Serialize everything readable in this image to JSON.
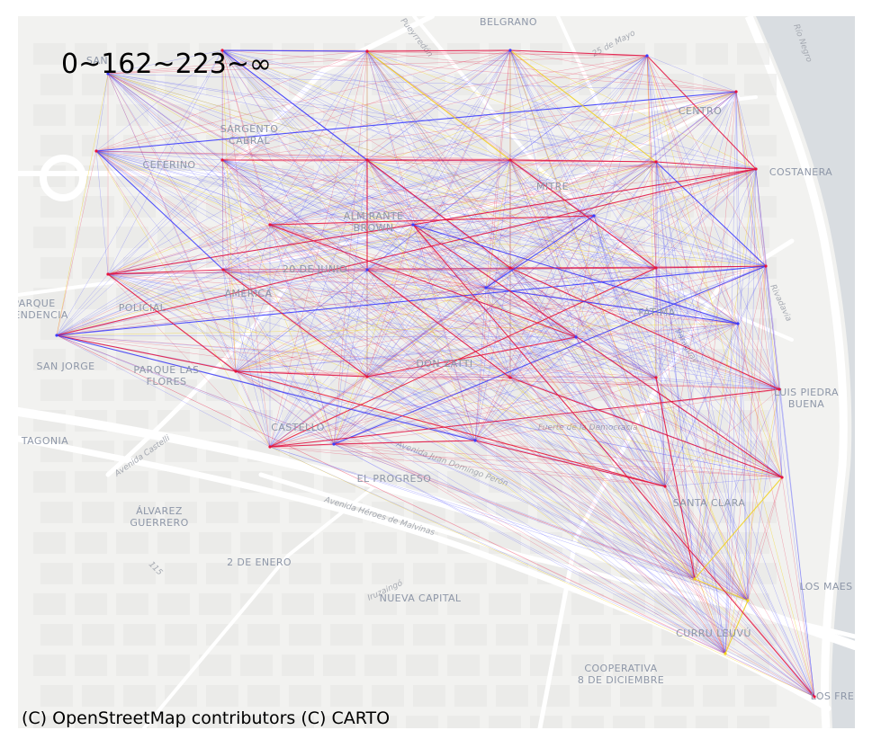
{
  "legend_text": "0~162~223~∞",
  "attribution": "(C) OpenStreetMap contributors (C) CARTO",
  "colors": {
    "background": "#f2f2f0",
    "river": "#d4d8dc",
    "road": "#ffffff",
    "block": "#e6e6e4",
    "label": "#8e97a8"
  },
  "edge_colors": {
    "blue": "#3b3bff",
    "red": "#e8123c",
    "yellow": "#f4d31a"
  },
  "places": [
    {
      "lines": [
        "BELGRANO"
      ]
    },
    {
      "lines": [
        "SARGENTO",
        "CABRAL"
      ]
    },
    {
      "lines": [
        "CENTRO"
      ]
    },
    {
      "lines": [
        "CEFERINO"
      ]
    },
    {
      "lines": [
        "COSTANERA"
      ]
    },
    {
      "lines": [
        "MITRE"
      ]
    },
    {
      "lines": [
        "ALMIRANTE",
        "BROWN"
      ]
    },
    {
      "lines": [
        "20 DE JUNIO"
      ]
    },
    {
      "lines": [
        "AMÉRICA"
      ]
    },
    {
      "lines": [
        "POLICIAL"
      ]
    },
    {
      "lines": [
        "PARQUE",
        "PENDENCIA"
      ]
    },
    {
      "lines": [
        "FÁTIMA"
      ]
    },
    {
      "lines": [
        "SAN JORGE"
      ]
    },
    {
      "lines": [
        "PARQUE LAS",
        "FLORES"
      ]
    },
    {
      "lines": [
        "DON ZATTI"
      ]
    },
    {
      "lines": [
        "LUIS PIEDRA",
        "BUENA"
      ]
    },
    {
      "lines": [
        "CASTELLO"
      ]
    },
    {
      "lines": [
        "TAGONIA"
      ]
    },
    {
      "lines": [
        "EL PROGRESO"
      ]
    },
    {
      "lines": [
        "SANTA CLARA"
      ]
    },
    {
      "lines": [
        "ÁLVAREZ",
        "GUERRERO"
      ]
    },
    {
      "lines": [
        "2 DE ENERO"
      ]
    },
    {
      "lines": [
        "NUEVA CAPITAL"
      ]
    },
    {
      "lines": [
        "LOS MAES"
      ]
    },
    {
      "lines": [
        "CURRU LEUVÚ"
      ]
    },
    {
      "lines": [
        "COOPERATIVA",
        "8 DE DICIEMBRE"
      ]
    },
    {
      "lines": [
        "LOS FRE"
      ]
    },
    {
      "lines": [
        "SAN"
      ]
    }
  ],
  "streets": [
    "Pueyrredón",
    "25 de Mayo",
    "Avenida Castelli",
    "Avenida Juan Domingo Perón",
    "Avenida Héroes de Malvinas",
    "Iruzaingó",
    "Fuerte de la Democracia",
    "Río Negro",
    "115",
    "Paraguay",
    "Rivadavia"
  ],
  "network": {
    "nodes": [
      {
        "id": 0,
        "name": "n0",
        "c": "b"
      },
      {
        "id": 1,
        "name": "n1",
        "c": "r"
      },
      {
        "id": 2,
        "name": "n2",
        "c": "r"
      },
      {
        "id": 3,
        "name": "n3",
        "c": "b"
      },
      {
        "id": 4,
        "name": "n4",
        "c": "b"
      },
      {
        "id": 5,
        "name": "n5",
        "c": "r"
      },
      {
        "id": 6,
        "name": "n6",
        "c": "r"
      },
      {
        "id": 7,
        "name": "n7",
        "c": "r"
      },
      {
        "id": 8,
        "name": "n8",
        "c": "r"
      },
      {
        "id": 9,
        "name": "n9",
        "c": "r"
      },
      {
        "id": 10,
        "name": "n10",
        "c": "r"
      },
      {
        "id": 11,
        "name": "n11",
        "c": "r"
      },
      {
        "id": 12,
        "name": "n12",
        "c": "r"
      },
      {
        "id": 13,
        "name": "n13",
        "c": "r"
      },
      {
        "id": 14,
        "name": "n14",
        "c": "b"
      },
      {
        "id": 15,
        "name": "n15",
        "c": "r"
      },
      {
        "id": 16,
        "name": "n16",
        "c": "r"
      },
      {
        "id": 17,
        "name": "n17",
        "c": "r"
      },
      {
        "id": 18,
        "name": "n18",
        "c": "b"
      },
      {
        "id": 19,
        "name": "n19",
        "c": "r"
      },
      {
        "id": 20,
        "name": "n20",
        "c": "r"
      },
      {
        "id": 21,
        "name": "n21",
        "c": "r"
      },
      {
        "id": 22,
        "name": "n22",
        "c": "r"
      },
      {
        "id": 23,
        "name": "n23",
        "c": "r"
      },
      {
        "id": 24,
        "name": "n24",
        "c": "r"
      },
      {
        "id": 25,
        "name": "n25",
        "c": "b"
      },
      {
        "id": 26,
        "name": "n26",
        "c": "b"
      },
      {
        "id": 27,
        "name": "n27",
        "c": "r"
      },
      {
        "id": 28,
        "name": "n28",
        "c": "r"
      },
      {
        "id": 29,
        "name": "n29",
        "c": "y"
      },
      {
        "id": 30,
        "name": "n30",
        "c": "y"
      },
      {
        "id": 31,
        "name": "n31",
        "c": "y"
      },
      {
        "id": 32,
        "name": "n32",
        "c": "r"
      },
      {
        "id": 33,
        "name": "n33",
        "c": "b"
      },
      {
        "id": 34,
        "name": "n34",
        "c": "b"
      },
      {
        "id": 35,
        "name": "n35",
        "c": "r"
      },
      {
        "id": 36,
        "name": "n36",
        "c": "b"
      },
      {
        "id": 37,
        "name": "n37",
        "c": "b"
      },
      {
        "id": 38,
        "name": "n38",
        "c": "b"
      }
    ],
    "strong_edges": [
      {
        "a": 2,
        "b": 3,
        "c": "r"
      },
      {
        "a": 3,
        "b": 4,
        "c": "r"
      },
      {
        "a": 8,
        "b": 9,
        "c": "r"
      },
      {
        "a": 9,
        "b": 10,
        "c": "r"
      },
      {
        "a": 10,
        "b": 11,
        "c": "r"
      },
      {
        "a": 11,
        "b": 12,
        "c": "r"
      },
      {
        "a": 12,
        "b": 13,
        "c": "r"
      },
      {
        "a": 15,
        "b": 16,
        "c": "r"
      },
      {
        "a": 16,
        "b": 17,
        "c": "r"
      },
      {
        "a": 17,
        "b": 18,
        "c": "b"
      },
      {
        "a": 18,
        "b": 19,
        "c": "r"
      },
      {
        "a": 19,
        "b": 20,
        "c": "r"
      },
      {
        "a": 8,
        "b": 15,
        "c": "r"
      },
      {
        "a": 15,
        "b": 23,
        "c": "r"
      },
      {
        "a": 9,
        "b": 16,
        "c": "r"
      },
      {
        "a": 16,
        "b": 24,
        "c": "r"
      },
      {
        "a": 10,
        "b": 17,
        "c": "b"
      },
      {
        "a": 17,
        "b": 25,
        "c": "b"
      },
      {
        "a": 11,
        "b": 18,
        "c": "r"
      },
      {
        "a": 18,
        "b": 26,
        "c": "b"
      },
      {
        "a": 12,
        "b": 19,
        "c": "r"
      },
      {
        "a": 19,
        "b": 27,
        "c": "r"
      },
      {
        "a": 14,
        "b": 8,
        "c": "r"
      },
      {
        "a": 14,
        "b": 21,
        "c": "r"
      },
      {
        "a": 1,
        "b": 2,
        "c": "b"
      },
      {
        "a": 5,
        "b": 6,
        "c": "b"
      },
      {
        "a": 9,
        "b": 2,
        "c": "y"
      },
      {
        "a": 29,
        "b": 30,
        "c": "y"
      },
      {
        "a": 30,
        "b": 31,
        "c": "y"
      },
      {
        "a": 32,
        "b": 33,
        "c": "r"
      },
      {
        "a": 34,
        "b": 35,
        "c": "r"
      },
      {
        "a": 36,
        "b": 37,
        "c": "b"
      },
      {
        "a": 37,
        "b": 38,
        "c": "b"
      },
      {
        "a": 23,
        "b": 24,
        "c": "r"
      },
      {
        "a": 24,
        "b": 25,
        "c": "r"
      },
      {
        "a": 25,
        "b": 26,
        "c": "r"
      },
      {
        "a": 26,
        "b": 27,
        "c": "r"
      },
      {
        "a": 22,
        "b": 29,
        "c": "r"
      },
      {
        "a": 21,
        "b": 28,
        "c": "r"
      },
      {
        "a": 28,
        "b": 29,
        "c": "y"
      },
      {
        "a": 20,
        "b": 34,
        "c": "r"
      },
      {
        "a": 28,
        "b": 33,
        "c": "r"
      },
      {
        "a": 33,
        "b": 36,
        "c": "b"
      },
      {
        "a": 35,
        "b": 38,
        "c": "r"
      },
      {
        "a": 3,
        "b": 10,
        "c": "y"
      },
      {
        "a": 4,
        "b": 11,
        "c": "r"
      },
      {
        "a": 6,
        "b": 13,
        "c": "b"
      },
      {
        "a": 1,
        "b": 8,
        "c": "b"
      },
      {
        "a": 7,
        "b": 9,
        "c": "r"
      },
      {
        "a": 13,
        "b": 20,
        "c": "r"
      }
    ]
  }
}
